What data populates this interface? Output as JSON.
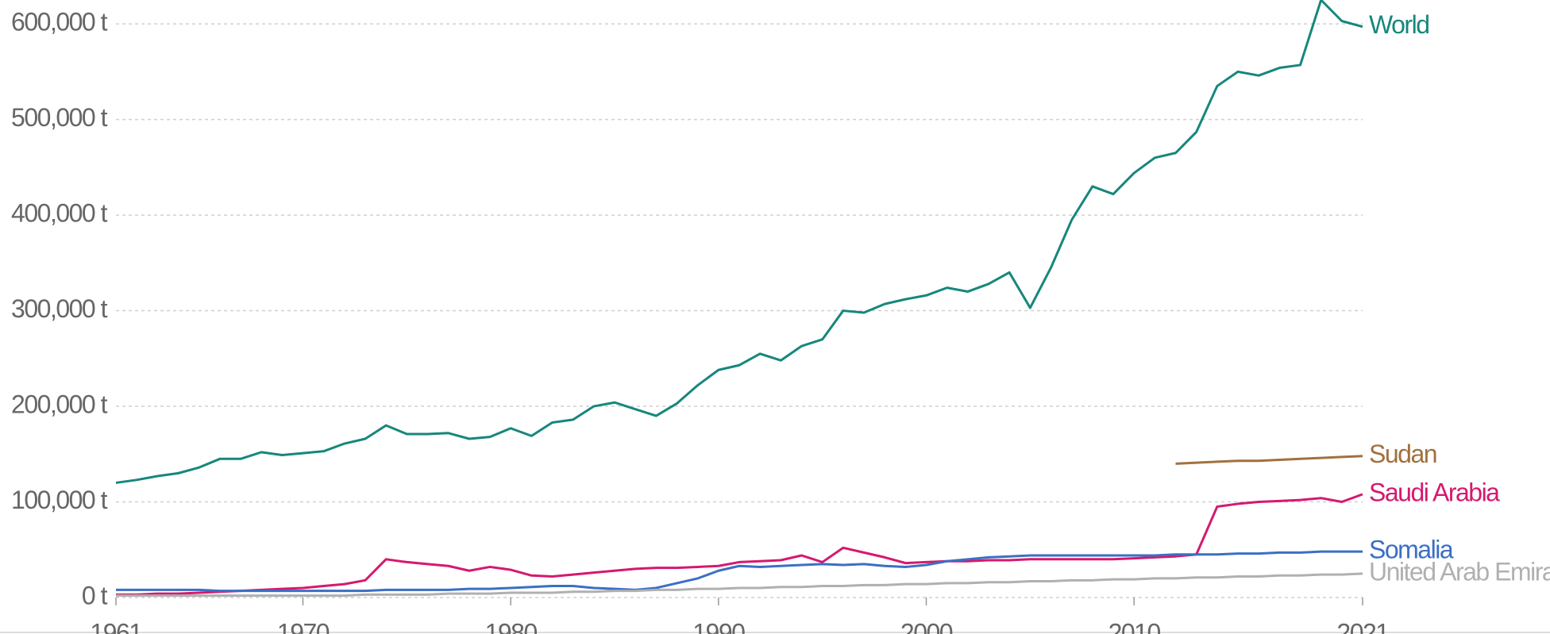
{
  "chart_data": {
    "type": "line",
    "x": [
      1961,
      1962,
      1963,
      1964,
      1965,
      1966,
      1967,
      1968,
      1969,
      1970,
      1971,
      1972,
      1973,
      1974,
      1975,
      1976,
      1977,
      1978,
      1979,
      1980,
      1981,
      1982,
      1983,
      1984,
      1985,
      1986,
      1987,
      1988,
      1989,
      1990,
      1991,
      1992,
      1993,
      1994,
      1995,
      1996,
      1997,
      1998,
      1999,
      2000,
      2001,
      2002,
      2003,
      2004,
      2005,
      2006,
      2007,
      2008,
      2009,
      2010,
      2011,
      2012,
      2013,
      2014,
      2015,
      2016,
      2017,
      2018,
      2019,
      2020,
      2021
    ],
    "xlim": [
      1961,
      2021
    ],
    "xticks": [
      1961,
      1970,
      1980,
      1990,
      2000,
      2010,
      2021
    ],
    "ylim": [
      0,
      625000
    ],
    "yticks": [
      {
        "value": 0,
        "label": "0 t"
      },
      {
        "value": 100000,
        "label": "100,000 t"
      },
      {
        "value": 200000,
        "label": "200,000 t"
      },
      {
        "value": 300000,
        "label": "300,000 t"
      },
      {
        "value": 400000,
        "label": "400,000 t"
      },
      {
        "value": 500000,
        "label": "500,000 t"
      },
      {
        "value": 600000,
        "label": "600,000 t"
      }
    ],
    "grid": true,
    "series": [
      {
        "name": "World",
        "color": "#16877c",
        "values": [
          120000,
          123000,
          127000,
          130000,
          136000,
          145000,
          145000,
          152000,
          149000,
          151000,
          153000,
          161000,
          166000,
          180000,
          171000,
          171000,
          172000,
          166000,
          168000,
          177000,
          169000,
          183000,
          186000,
          200000,
          204000,
          197000,
          190000,
          203000,
          222000,
          238000,
          243000,
          255000,
          248000,
          263000,
          270000,
          300000,
          298000,
          307000,
          312000,
          316000,
          324000,
          320000,
          328000,
          340000,
          303000,
          345000,
          395000,
          430000,
          422000,
          444000,
          460000,
          465000,
          487000,
          535000,
          550000,
          546000,
          554000,
          557000,
          625000,
          603000,
          597000
        ]
      },
      {
        "name": "Sudan",
        "color": "#a2713d",
        "values": [
          null,
          null,
          null,
          null,
          null,
          null,
          null,
          null,
          null,
          null,
          null,
          null,
          null,
          null,
          null,
          null,
          null,
          null,
          null,
          null,
          null,
          null,
          null,
          null,
          null,
          null,
          null,
          null,
          null,
          null,
          null,
          null,
          null,
          null,
          null,
          null,
          null,
          null,
          null,
          null,
          null,
          null,
          null,
          null,
          null,
          null,
          null,
          null,
          null,
          null,
          null,
          140000,
          141000,
          142000,
          143000,
          143000,
          144000,
          145000,
          146000,
          147000,
          148000
        ]
      },
      {
        "name": "Saudi Arabia",
        "color": "#d5196e",
        "values": [
          3000,
          3000,
          4000,
          4000,
          5000,
          6000,
          7000,
          8000,
          9000,
          10000,
          12000,
          14000,
          18000,
          40000,
          37000,
          35000,
          33000,
          28000,
          32000,
          29000,
          23000,
          22000,
          24000,
          26000,
          28000,
          30000,
          31000,
          31000,
          32000,
          33000,
          37000,
          38000,
          39000,
          44000,
          37000,
          52000,
          47000,
          42000,
          36000,
          37000,
          38000,
          38000,
          39000,
          39000,
          40000,
          40000,
          40000,
          40000,
          40000,
          41000,
          42000,
          43000,
          45000,
          95000,
          98000,
          100000,
          101000,
          102000,
          104000,
          100000,
          108000
        ]
      },
      {
        "name": "Somalia",
        "color": "#3b6fc4",
        "values": [
          8000,
          8000,
          8000,
          8000,
          8000,
          7000,
          7000,
          7000,
          7000,
          7000,
          7000,
          7000,
          7000,
          8000,
          8000,
          8000,
          8000,
          9000,
          9000,
          10000,
          11000,
          12000,
          12000,
          10000,
          9000,
          8000,
          10000,
          15000,
          20000,
          28000,
          33000,
          32000,
          33000,
          34000,
          35000,
          34000,
          35000,
          33000,
          32000,
          34000,
          38000,
          40000,
          42000,
          43000,
          44000,
          44000,
          44000,
          44000,
          44000,
          44000,
          44000,
          45000,
          45000,
          45000,
          46000,
          46000,
          47000,
          47000,
          48000,
          48000,
          48000
        ]
      },
      {
        "name": "United Arab Emirates",
        "color": "#b0b0b0",
        "values": [
          2000,
          2000,
          2000,
          2000,
          2000,
          2000,
          2000,
          2000,
          2000,
          2000,
          2000,
          2000,
          3000,
          3000,
          3000,
          3000,
          4000,
          4000,
          4000,
          5000,
          5000,
          5000,
          6000,
          6000,
          7000,
          7000,
          8000,
          8000,
          9000,
          9000,
          10000,
          10000,
          11000,
          11000,
          12000,
          12000,
          13000,
          13000,
          14000,
          14000,
          15000,
          15000,
          16000,
          16000,
          17000,
          17000,
          18000,
          18000,
          19000,
          19000,
          20000,
          20000,
          21000,
          21000,
          22000,
          22000,
          23000,
          23000,
          24000,
          24000,
          25000
        ]
      }
    ]
  }
}
